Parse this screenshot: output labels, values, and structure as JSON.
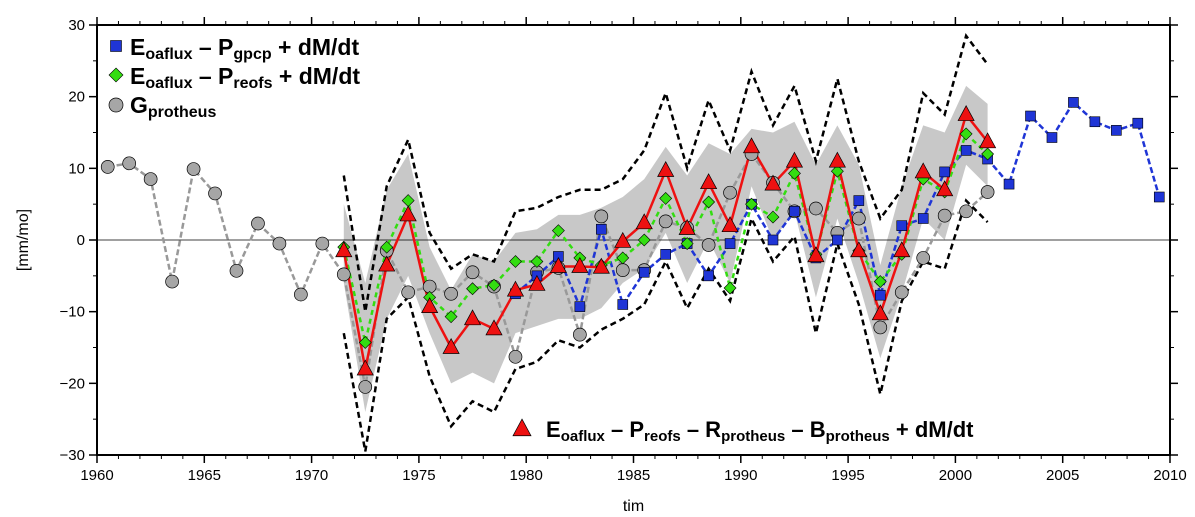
{
  "chart_data": {
    "type": "line",
    "title": "",
    "xlabel": "tim",
    "ylabel": "[mm/mo]",
    "xlim": [
      1960,
      2010
    ],
    "ylim": [
      -30,
      30
    ],
    "xticks": [
      1960,
      1965,
      1970,
      1975,
      1980,
      1985,
      1990,
      1995,
      2000,
      2005,
      2010
    ],
    "yticks": [
      -30,
      -20,
      -10,
      0,
      10,
      20,
      30
    ],
    "zero_line": true,
    "grid": false,
    "colors": {
      "blue": "#1f35d6",
      "green": "#33dd11",
      "gray_marker": "#a6a6a6",
      "red": "#ee1111",
      "band": "#c8c8c8"
    },
    "series": [
      {
        "key": "gpcp",
        "marker": "square",
        "legend_main": "E",
        "legend_sub1": "oaflux",
        "legend_mid": " – P",
        "legend_sub2": "gpcp",
        "legend_tail": " + dM/dt",
        "x": [
          1979.5,
          1980.5,
          1981.5,
          1982.5,
          1983.5,
          1984.5,
          1985.5,
          1986.5,
          1987.5,
          1988.5,
          1989.5,
          1990.5,
          1991.5,
          1992.5,
          1993.5,
          1994.5,
          1995.5,
          1996.5,
          1997.5,
          1998.5,
          1999.5,
          2000.5,
          2001.5,
          2002.5,
          2003.5,
          2004.5,
          2005.5,
          2006.5,
          2007.5,
          2008.5,
          2009.5
        ],
        "y": [
          -7.5,
          -5,
          -2.3,
          -9.3,
          1.5,
          -9,
          -4.5,
          -2,
          -0.5,
          -5,
          -0.5,
          5,
          0,
          4,
          -2.5,
          0,
          5.5,
          -7.7,
          2,
          3,
          9.5,
          12.5,
          11.3,
          7.8,
          17.3,
          14.3,
          19.2,
          16.5,
          15.3,
          16.3,
          6
        ]
      },
      {
        "key": "reofs",
        "marker": "diamond",
        "legend_main": "E",
        "legend_sub1": "oaflux",
        "legend_mid": " – P",
        "legend_sub2": "reofs",
        "legend_tail": " + dM/dt",
        "x": [
          1971.5,
          1972.5,
          1973.5,
          1974.5,
          1975.5,
          1976.5,
          1977.5,
          1978.5,
          1979.5,
          1980.5,
          1981.5,
          1982.5,
          1983.5,
          1984.5,
          1985.5,
          1986.5,
          1987.5,
          1988.5,
          1989.5,
          1990.5,
          1991.5,
          1992.5,
          1993.5,
          1994.5,
          1995.5,
          1996.5,
          1997.5,
          1998.5,
          1999.5,
          2000.5,
          2001.5
        ],
        "y": [
          -1,
          -14.3,
          -1,
          5.5,
          -8,
          -10.7,
          -6.8,
          -6.3,
          -3,
          -3,
          1.3,
          -2.5,
          -3.5,
          -2.5,
          0,
          5.8,
          -0.5,
          5.3,
          -6.7,
          5,
          3.2,
          9.3,
          -2,
          9.6,
          -1.5,
          -5.8,
          -2,
          8.5,
          6.7,
          14.8,
          12
        ]
      },
      {
        "key": "protheus",
        "marker": "circle",
        "legend_main": "G",
        "legend_sub1": "protheus",
        "legend_mid": "",
        "legend_sub2": "",
        "legend_tail": "",
        "x": [
          1960.5,
          1961.5,
          1962.5,
          1963.5,
          1964.5,
          1965.5,
          1966.5,
          1967.5,
          1968.5,
          1969.5,
          1970.5,
          1971.5,
          1972.5,
          1973.5,
          1974.5,
          1975.5,
          1976.5,
          1977.5,
          1978.5,
          1979.5,
          1980.5,
          1981.5,
          1982.5,
          1983.5,
          1984.5,
          1985.5,
          1986.5,
          1987.5,
          1988.5,
          1989.5,
          1990.5,
          1991.5,
          1992.5,
          1993.5,
          1994.5,
          1995.5,
          1996.5,
          1997.5,
          1998.5,
          1999.5,
          2000.5,
          2001.5
        ],
        "y": [
          10.2,
          10.7,
          8.5,
          -5.8,
          9.9,
          6.5,
          -4.3,
          2.3,
          -0.5,
          -7.6,
          -0.5,
          -4.8,
          -20.5,
          -1.5,
          -7.3,
          -6.5,
          -7.5,
          -4.5,
          -6.5,
          -16.3,
          -4.5,
          -3.9,
          -13.2,
          3.3,
          -4.2,
          -4.2,
          2.6,
          1.7,
          -0.7,
          6.6,
          12,
          8,
          4,
          4.4,
          1,
          3,
          -12.2,
          -7.3,
          -2.5,
          3.4,
          4,
          6.7
        ]
      },
      {
        "key": "residual",
        "marker": "triangle",
        "legend_main": "E",
        "legend_sub1": "oaflux",
        "legend_mid": " – P",
        "legend_sub2": "reofs",
        "legend_mid2": " – R",
        "legend_sub3": "protheus",
        "legend_mid3": " – B",
        "legend_sub4": "protheus",
        "legend_tail": " + dM/dt",
        "x": [
          1971.5,
          1972.5,
          1973.5,
          1974.5,
          1975.5,
          1976.5,
          1977.5,
          1978.5,
          1979.5,
          1980.5,
          1981.5,
          1982.5,
          1983.5,
          1984.5,
          1985.5,
          1986.5,
          1987.5,
          1988.5,
          1989.5,
          1990.5,
          1991.5,
          1992.5,
          1993.5,
          1994.5,
          1995.5,
          1996.5,
          1997.5,
          1998.5,
          1999.5,
          2000.5,
          2001.5
        ],
        "y": [
          -1.5,
          -18,
          -3.5,
          3.5,
          -9.3,
          -15,
          -11,
          -12.4,
          -7,
          -6.2,
          -3.7,
          -3.7,
          -3.8,
          -0.2,
          2.4,
          9.7,
          1.6,
          8,
          2,
          13,
          7.8,
          11,
          -2.2,
          11,
          -1.5,
          -10.3,
          -1.5,
          9.5,
          7,
          17.5,
          13.7
        ]
      }
    ],
    "band": {
      "x": [
        1971.5,
        1972.5,
        1973.5,
        1974.5,
        1975.5,
        1976.5,
        1977.5,
        1978.5,
        1979.5,
        1980.5,
        1981.5,
        1982.5,
        1983.5,
        1984.5,
        1985.5,
        1986.5,
        1987.5,
        1988.5,
        1989.5,
        1990.5,
        1991.5,
        1992.5,
        1993.5,
        1994.5,
        1995.5,
        1996.5,
        1997.5,
        1998.5,
        1999.5,
        2000.5,
        2001.5
      ],
      "upper": [
        5,
        -6,
        7,
        12,
        -1,
        -7,
        -2,
        -3,
        1,
        1.5,
        3.5,
        3.5,
        4.5,
        6,
        8.5,
        13,
        9,
        13.5,
        12,
        15.5,
        15,
        16.5,
        10.5,
        16,
        10.5,
        -3.5,
        7.5,
        16,
        15,
        21.5,
        19
      ],
      "lower": [
        -6,
        -24,
        -11,
        -5,
        -13,
        -20,
        -18.5,
        -20,
        -13,
        -12,
        -11,
        -11,
        -9.5,
        -6,
        -4,
        1,
        -6,
        0,
        -6,
        7.5,
        0,
        4,
        -8,
        3,
        -6,
        -16.5,
        -7.5,
        3,
        0,
        10.5,
        7.5
      ]
    },
    "bounds": {
      "x": [
        1971.5,
        1972.5,
        1973.5,
        1974.5,
        1975.5,
        1976.5,
        1977.5,
        1978.5,
        1979.5,
        1980.5,
        1981.5,
        1982.5,
        1983.5,
        1984.5,
        1985.5,
        1986.5,
        1987.5,
        1988.5,
        1989.5,
        1990.5,
        1991.5,
        1992.5,
        1993.5,
        1994.5,
        1995.5,
        1996.5,
        1997.5,
        1998.5,
        1999.5,
        2000.5,
        2001.5
      ],
      "upper": [
        9,
        -10,
        7.5,
        14,
        1,
        -4,
        -2,
        -3,
        4,
        4.5,
        6,
        7,
        7,
        8.5,
        12.5,
        20.5,
        10,
        19.5,
        12.5,
        23.5,
        16,
        21.5,
        11,
        22.5,
        11,
        3,
        7,
        20.5,
        17.5,
        28.5,
        24.5
      ],
      "lower": [
        -13,
        -29.5,
        -11,
        -8,
        -19,
        -26,
        -22.5,
        -24,
        -18,
        -17,
        -14,
        -15,
        -12.5,
        -11,
        -9,
        -3,
        -9.5,
        -4,
        -8.5,
        3,
        -3,
        0.5,
        -13,
        -0.5,
        -9,
        -21.5,
        -8.5,
        -3,
        -4,
        5.5,
        2.5
      ]
    }
  }
}
